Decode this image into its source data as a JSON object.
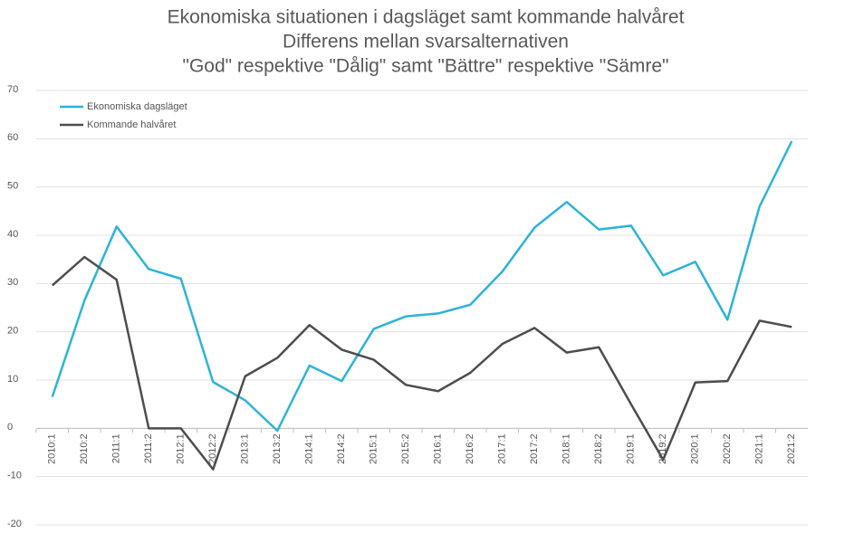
{
  "chart_data": {
    "type": "line",
    "title": [
      "Ekonomiska situationen i dagsläget samt kommande halvåret",
      "Differens mellan svarsalternativen",
      "\"God\" respektive \"Dålig\" samt \"Bättre\" respektive \"Sämre\""
    ],
    "categories": [
      "2010:1",
      "2010:2",
      "2011:1",
      "2011:2",
      "2012:1",
      "2012:2",
      "2013:1",
      "2013:2",
      "2014:1",
      "2014:2",
      "2015:1",
      "2015:2",
      "2016:1",
      "2016:2",
      "2017:1",
      "2017:2",
      "2018:1",
      "2018:2",
      "2019:1",
      "2019:2",
      "2020:1",
      "2020:2",
      "2021:1",
      "2021:2"
    ],
    "series": [
      {
        "name": "Ekonomiska dagsläget",
        "color": "#2cb3d9",
        "values": [
          6.5,
          26.5,
          41.8,
          33,
          31,
          9.6,
          5.8,
          -0.5,
          13,
          9.8,
          20.6,
          23.2,
          23.8,
          25.6,
          32.5,
          41.6,
          46.9,
          41.2,
          42,
          31.7,
          34.5,
          22.5,
          46,
          59.5
        ]
      },
      {
        "name": "Kommande halvåret",
        "color": "#4d4d4d",
        "values": [
          29.6,
          35.5,
          30.8,
          0,
          0,
          -8.5,
          10.8,
          14.6,
          21.4,
          16.3,
          14.2,
          9,
          7.7,
          11.5,
          17.5,
          20.8,
          15.7,
          16.8,
          5,
          -6.5,
          9.5,
          9.8,
          22.3,
          21
        ]
      }
    ],
    "ylim": [
      -20,
      70
    ],
    "yticks": [
      -20,
      -10,
      0,
      10,
      20,
      30,
      40,
      50,
      60,
      70
    ],
    "grid": true,
    "legend": "top-left"
  }
}
